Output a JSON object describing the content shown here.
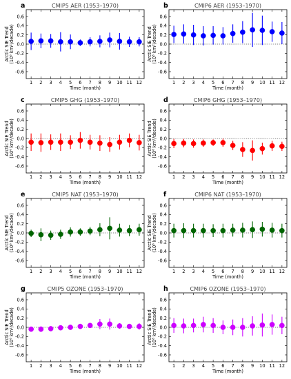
{
  "chart_data": [
    {
      "type": "scatter",
      "panel": "a",
      "title": "CMIP5 AER (1953–1970)",
      "color": "#0000ff",
      "xlabel": "Time (month)",
      "ylabel": "Arctic SIE Trend",
      "ylabel_unit": "(10⁶ km²/decade)",
      "x": [
        1,
        2,
        3,
        4,
        5,
        6,
        7,
        8,
        9,
        10,
        11,
        12
      ],
      "y": [
        0.06,
        0.07,
        0.07,
        0.05,
        0.05,
        0.03,
        0.05,
        0.06,
        0.09,
        0.06,
        0.05,
        0.05
      ],
      "yerr": [
        0.19,
        0.16,
        0.15,
        0.21,
        0.16,
        0.07,
        0.1,
        0.13,
        0.16,
        0.18,
        0.11,
        0.1
      ],
      "ylim": [
        -0.75,
        0.75
      ],
      "yticks": [
        -0.6,
        -0.4,
        -0.2,
        0.0,
        0.2,
        0.4,
        0.6
      ],
      "xticks": [
        1,
        2,
        3,
        4,
        5,
        6,
        7,
        8,
        9,
        10,
        11,
        12
      ]
    },
    {
      "type": "scatter",
      "panel": "b",
      "title": "CMIP6 AER (1953–1970)",
      "color": "#0000ff",
      "xlabel": "Time (month)",
      "ylabel": "Arctic SIE Trend",
      "ylabel_unit": "(10⁶ km²/decade)",
      "x": [
        1,
        2,
        3,
        4,
        5,
        6,
        7,
        8,
        9,
        10,
        11,
        12
      ],
      "y": [
        0.21,
        0.22,
        0.2,
        0.18,
        0.19,
        0.18,
        0.23,
        0.26,
        0.31,
        0.3,
        0.27,
        0.24
      ],
      "yerr": [
        0.19,
        0.21,
        0.22,
        0.21,
        0.2,
        0.19,
        0.2,
        0.24,
        0.37,
        0.32,
        0.22,
        0.24
      ],
      "ylim": [
        -0.75,
        0.75
      ],
      "yticks": [
        -0.6,
        -0.4,
        -0.2,
        0.0,
        0.2,
        0.4,
        0.6
      ],
      "xticks": [
        1,
        2,
        3,
        4,
        5,
        6,
        7,
        8,
        9,
        10,
        11,
        12
      ]
    },
    {
      "type": "scatter",
      "panel": "c",
      "title": "CMIP5 GHG (1953–1970)",
      "color": "#ff0000",
      "xlabel": "Time (month)",
      "ylabel": "Arctic SIE Trend",
      "ylabel_unit": "(10⁶ km²/decade)",
      "x": [
        1,
        2,
        3,
        4,
        5,
        6,
        7,
        8,
        9,
        10,
        11,
        12
      ],
      "y": [
        -0.08,
        -0.09,
        -0.08,
        -0.08,
        -0.08,
        -0.04,
        -0.08,
        -0.1,
        -0.13,
        -0.08,
        -0.04,
        -0.09
      ],
      "yerr": [
        0.19,
        0.2,
        0.17,
        0.19,
        0.15,
        0.18,
        0.16,
        0.17,
        0.16,
        0.16,
        0.15,
        0.17
      ],
      "ylim": [
        -0.75,
        0.75
      ],
      "yticks": [
        -0.6,
        -0.4,
        -0.2,
        0.0,
        0.2,
        0.4,
        0.6
      ],
      "xticks": [
        1,
        2,
        3,
        4,
        5,
        6,
        7,
        8,
        9,
        10,
        11,
        12
      ]
    },
    {
      "type": "scatter",
      "panel": "d",
      "title": "CMIP6 GHG (1953–1970)",
      "color": "#ff0000",
      "xlabel": "Time (month)",
      "ylabel": "Arctic SIE Trend",
      "ylabel_unit": "(10⁶ km²/decade)",
      "x": [
        1,
        2,
        3,
        4,
        5,
        6,
        7,
        8,
        9,
        10,
        11,
        12
      ],
      "y": [
        -0.11,
        -0.1,
        -0.11,
        -0.1,
        -0.09,
        -0.09,
        -0.15,
        -0.24,
        -0.26,
        -0.22,
        -0.16,
        -0.17
      ],
      "yerr": [
        0.1,
        0.09,
        0.09,
        0.08,
        0.07,
        0.09,
        0.1,
        0.16,
        0.22,
        0.13,
        0.11,
        0.1
      ],
      "ylim": [
        -0.75,
        0.75
      ],
      "yticks": [
        -0.6,
        -0.4,
        -0.2,
        0.0,
        0.2,
        0.4,
        0.6
      ],
      "xticks": [
        1,
        2,
        3,
        4,
        5,
        6,
        7,
        8,
        9,
        10,
        11,
        12
      ]
    },
    {
      "type": "scatter",
      "panel": "e",
      "title": "CMIP5 NAT (1953–1970)",
      "color": "#006400",
      "xlabel": "Time (month)",
      "ylabel": "Arctic SIE Trend",
      "ylabel_unit": "(10⁶ km²/decade)",
      "x": [
        1,
        2,
        3,
        4,
        5,
        6,
        7,
        8,
        9,
        10,
        11,
        12
      ],
      "y": [
        -0.01,
        -0.04,
        -0.05,
        -0.03,
        0.02,
        0.02,
        0.04,
        0.07,
        0.1,
        0.06,
        0.05,
        0.07
      ],
      "yerr": [
        0.08,
        0.14,
        0.1,
        0.1,
        0.1,
        0.08,
        0.09,
        0.14,
        0.24,
        0.14,
        0.12,
        0.13
      ],
      "ylim": [
        -0.75,
        0.75
      ],
      "yticks": [
        -0.6,
        -0.4,
        -0.2,
        0.0,
        0.2,
        0.4,
        0.6
      ],
      "xticks": [
        1,
        2,
        3,
        4,
        5,
        6,
        7,
        8,
        9,
        10,
        11,
        12
      ]
    },
    {
      "type": "scatter",
      "panel": "f",
      "title": "CMIP6 NAT (1953–1970)",
      "color": "#006400",
      "xlabel": "Time (month)",
      "ylabel": "Arctic SIE Trend",
      "ylabel_unit": "(10⁶ km²/decade)",
      "x": [
        1,
        2,
        3,
        4,
        5,
        6,
        7,
        8,
        9,
        10,
        11,
        12
      ],
      "y": [
        0.05,
        0.05,
        0.05,
        0.05,
        0.05,
        0.05,
        0.06,
        0.06,
        0.07,
        0.08,
        0.06,
        0.05
      ],
      "yerr": [
        0.15,
        0.16,
        0.15,
        0.15,
        0.14,
        0.15,
        0.14,
        0.16,
        0.18,
        0.16,
        0.16,
        0.15
      ],
      "ylim": [
        -0.75,
        0.75
      ],
      "yticks": [
        -0.6,
        -0.4,
        -0.2,
        0.0,
        0.2,
        0.4,
        0.6
      ],
      "xticks": [
        1,
        2,
        3,
        4,
        5,
        6,
        7,
        8,
        9,
        10,
        11,
        12
      ]
    },
    {
      "type": "scatter",
      "panel": "g",
      "title": "CMIP5 OZONE (1953–1970)",
      "color": "#cc00ff",
      "xlabel": "Time (month)",
      "ylabel": "Arctic SIE Trend",
      "ylabel_unit": "(10⁶ km²/decade)",
      "x": [
        1,
        2,
        3,
        4,
        5,
        6,
        7,
        8,
        9,
        10,
        11,
        12
      ],
      "y": [
        -0.04,
        -0.04,
        -0.03,
        -0.01,
        0.0,
        0.02,
        0.04,
        0.07,
        0.07,
        0.03,
        0.02,
        0.02
      ],
      "yerr": [
        0.03,
        0.06,
        0.04,
        0.03,
        0.04,
        0.03,
        0.04,
        0.11,
        0.12,
        0.06,
        0.04,
        0.07
      ],
      "ylim": [
        -0.75,
        0.75
      ],
      "yticks": [
        -0.6,
        -0.4,
        -0.2,
        0.0,
        0.2,
        0.4,
        0.6
      ],
      "xticks": [
        1,
        2,
        3,
        4,
        5,
        6,
        7,
        8,
        9,
        10,
        11,
        12
      ]
    },
    {
      "type": "scatter",
      "panel": "h",
      "title": "CMIP6 OZONE (1953–1970)",
      "color": "#cc00ff",
      "xlabel": "Time (month)",
      "ylabel": "Arctic SIE Trend",
      "ylabel_unit": "(10⁶ km²/decade)",
      "x": [
        1,
        2,
        3,
        4,
        5,
        6,
        7,
        8,
        9,
        10,
        11,
        12
      ],
      "y": [
        0.04,
        0.03,
        0.04,
        0.06,
        0.04,
        0.0,
        0.0,
        0.0,
        0.03,
        0.05,
        0.06,
        0.04
      ],
      "yerr": [
        0.16,
        0.16,
        0.15,
        0.17,
        0.16,
        0.15,
        0.17,
        0.2,
        0.21,
        0.25,
        0.22,
        0.19
      ],
      "ylim": [
        -0.75,
        0.75
      ],
      "yticks": [
        -0.6,
        -0.4,
        -0.2,
        0.0,
        0.2,
        0.4,
        0.6
      ],
      "xticks": [
        1,
        2,
        3,
        4,
        5,
        6,
        7,
        8,
        9,
        10,
        11,
        12
      ]
    }
  ]
}
